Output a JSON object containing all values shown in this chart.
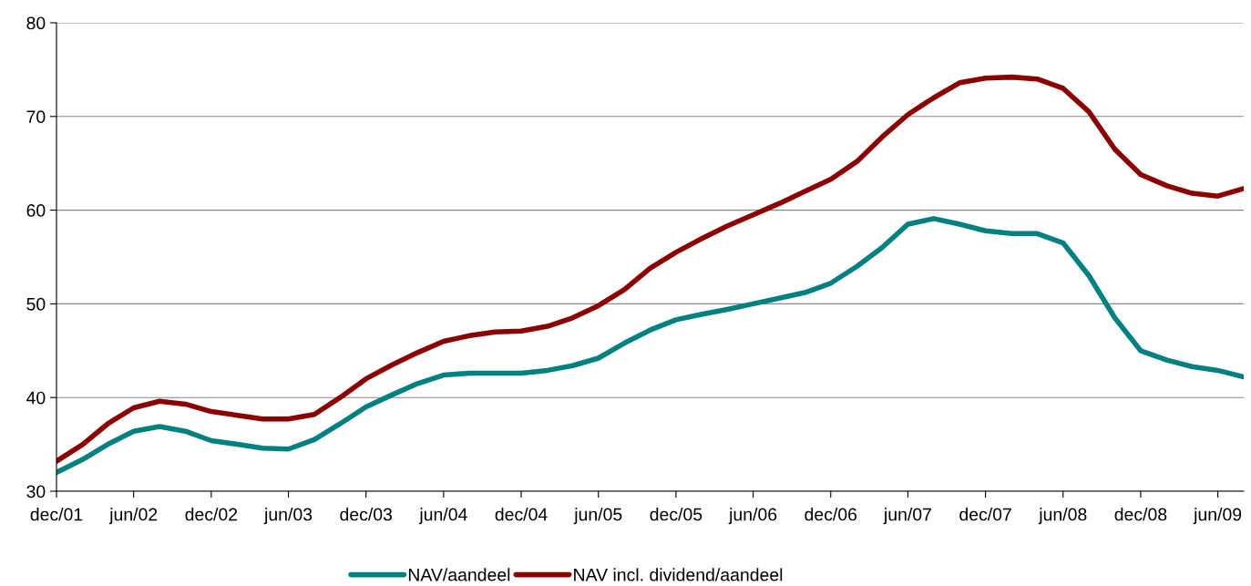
{
  "chart_data": {
    "type": "line",
    "x": [
      "2001-12",
      "2002-02",
      "2002-04",
      "2002-06",
      "2002-08",
      "2002-10",
      "2002-12",
      "2003-02",
      "2003-04",
      "2003-06",
      "2003-08",
      "2003-10",
      "2003-12",
      "2004-02",
      "2004-04",
      "2004-06",
      "2004-08",
      "2004-10",
      "2004-12",
      "2005-02",
      "2005-04",
      "2005-06",
      "2005-08",
      "2005-10",
      "2005-12",
      "2006-02",
      "2006-04",
      "2006-06",
      "2006-08",
      "2006-10",
      "2006-12",
      "2007-02",
      "2007-04",
      "2007-06",
      "2007-08",
      "2007-10",
      "2007-12",
      "2008-02",
      "2008-04",
      "2008-06",
      "2008-08",
      "2008-10",
      "2008-12",
      "2009-02",
      "2009-04",
      "2009-06",
      "2009-08"
    ],
    "series": [
      {
        "name": "NAV/aandeel",
        "color": "#008080",
        "values": [
          32.0,
          33.4,
          35.0,
          36.4,
          36.9,
          36.4,
          35.4,
          35.0,
          34.6,
          34.5,
          35.5,
          37.2,
          39.0,
          40.3,
          41.5,
          42.4,
          42.6,
          42.6,
          42.6,
          42.9,
          43.4,
          44.2,
          45.8,
          47.2,
          48.3,
          48.9,
          49.4,
          50.0,
          50.6,
          51.2,
          52.2,
          54.0,
          56.0,
          58.5,
          59.1,
          58.5,
          57.8,
          57.5,
          57.5,
          56.5,
          53.0,
          48.5,
          45.0,
          44.0,
          43.3,
          42.9,
          42.2
        ]
      },
      {
        "name": "NAV incl. dividend/aandeel",
        "color": "#8b0000",
        "values": [
          33.2,
          35.0,
          37.2,
          38.9,
          39.6,
          39.3,
          38.5,
          38.1,
          37.7,
          37.7,
          38.2,
          40.0,
          42.0,
          43.5,
          44.8,
          46.0,
          46.6,
          47.0,
          47.1,
          47.6,
          48.5,
          49.8,
          51.5,
          53.8,
          55.5,
          57.0,
          58.3,
          59.5,
          60.7,
          62.0,
          63.3,
          65.2,
          67.8,
          70.2,
          72.0,
          73.6,
          74.1,
          74.2,
          74.0,
          73.0,
          70.5,
          66.5,
          63.8,
          62.6,
          61.8,
          61.5,
          62.3
        ]
      }
    ],
    "xlim": [
      "2001-12",
      "2009-08"
    ],
    "xticks": [
      {
        "value": "2001-12",
        "label": "dec/01"
      },
      {
        "value": "2002-06",
        "label": "jun/02"
      },
      {
        "value": "2002-12",
        "label": "dec/02"
      },
      {
        "value": "2003-06",
        "label": "jun/03"
      },
      {
        "value": "2003-12",
        "label": "dec/03"
      },
      {
        "value": "2004-06",
        "label": "jun/04"
      },
      {
        "value": "2004-12",
        "label": "dec/04"
      },
      {
        "value": "2005-06",
        "label": "jun/05"
      },
      {
        "value": "2005-12",
        "label": "dec/05"
      },
      {
        "value": "2006-06",
        "label": "jun/06"
      },
      {
        "value": "2006-12",
        "label": "dec/06"
      },
      {
        "value": "2007-06",
        "label": "jun/07"
      },
      {
        "value": "2007-12",
        "label": "dec/07"
      },
      {
        "value": "2008-06",
        "label": "jun/08"
      },
      {
        "value": "2008-12",
        "label": "dec/08"
      },
      {
        "value": "2009-06",
        "label": "jun/09"
      }
    ],
    "ylim": [
      30,
      80
    ],
    "yticks": [
      30,
      40,
      50,
      60,
      70,
      80
    ],
    "grid": "y",
    "legend": "bottom",
    "marker": "none",
    "line_style": "solid"
  }
}
